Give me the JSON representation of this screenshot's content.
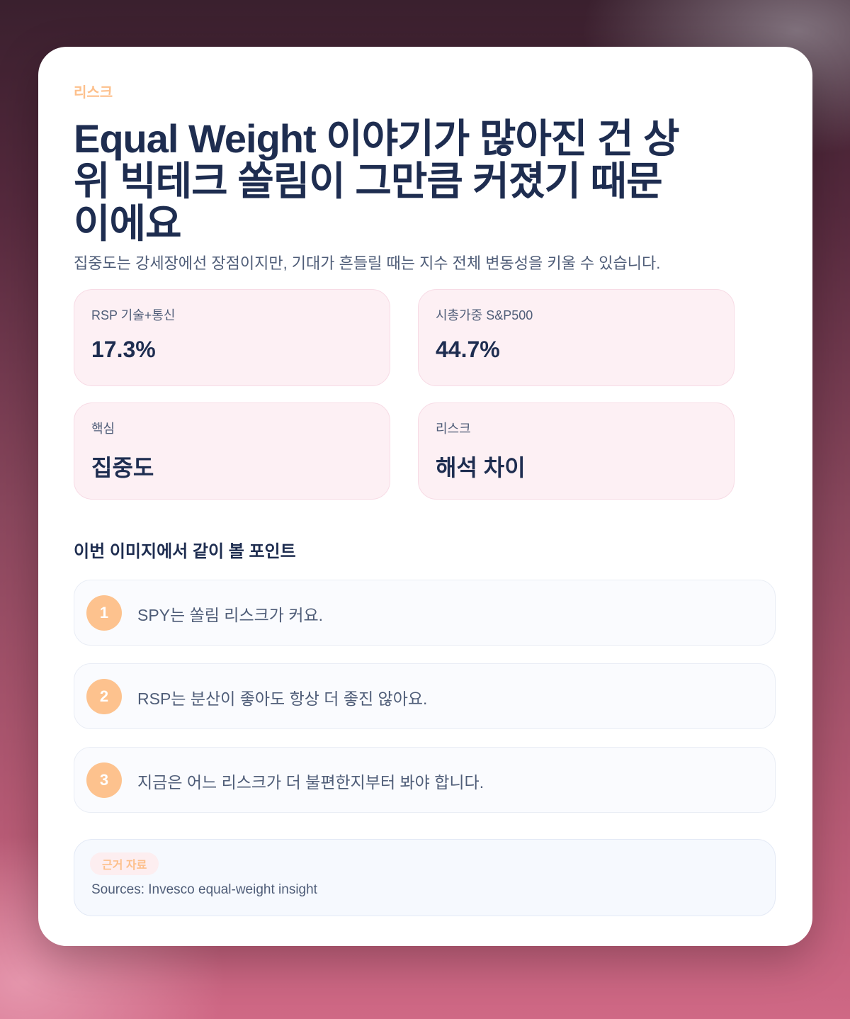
{
  "eyebrow": "리스크",
  "title": "Equal Weight 이야기가 많아진 건 상위 빅테크 쏠림이 그만큼 커졌기 때문이에요",
  "subtitle": "집중도는 강세장에선 장점이지만, 기대가 흔들릴 때는 지수 전체 변동성을 키울 수 있습니다.",
  "stats": [
    {
      "label": "RSP 기술+통신",
      "value": "17.3%"
    },
    {
      "label": "시총가중 S&P500",
      "value": "44.7%"
    },
    {
      "label": "핵심",
      "value": "집중도"
    },
    {
      "label": "리스크",
      "value": "해석 차이"
    }
  ],
  "points_heading": "이번 이미지에서 같이 볼 포인트",
  "points": [
    {
      "num": "1",
      "text": "SPY는 쏠림 리스크가 커요."
    },
    {
      "num": "2",
      "text": "RSP는 분산이 좋아도 항상 더 좋진 않아요."
    },
    {
      "num": "3",
      "text": "지금은 어느 리스크가 더 불편한지부터 봐야 합니다."
    }
  ],
  "sources": {
    "badge": "근거 자료",
    "text": "Sources: Invesco equal-weight insight"
  },
  "colors": {
    "accent": "#fdc28e",
    "title": "#1e2d50",
    "stat_bg": "#fdf0f4"
  }
}
